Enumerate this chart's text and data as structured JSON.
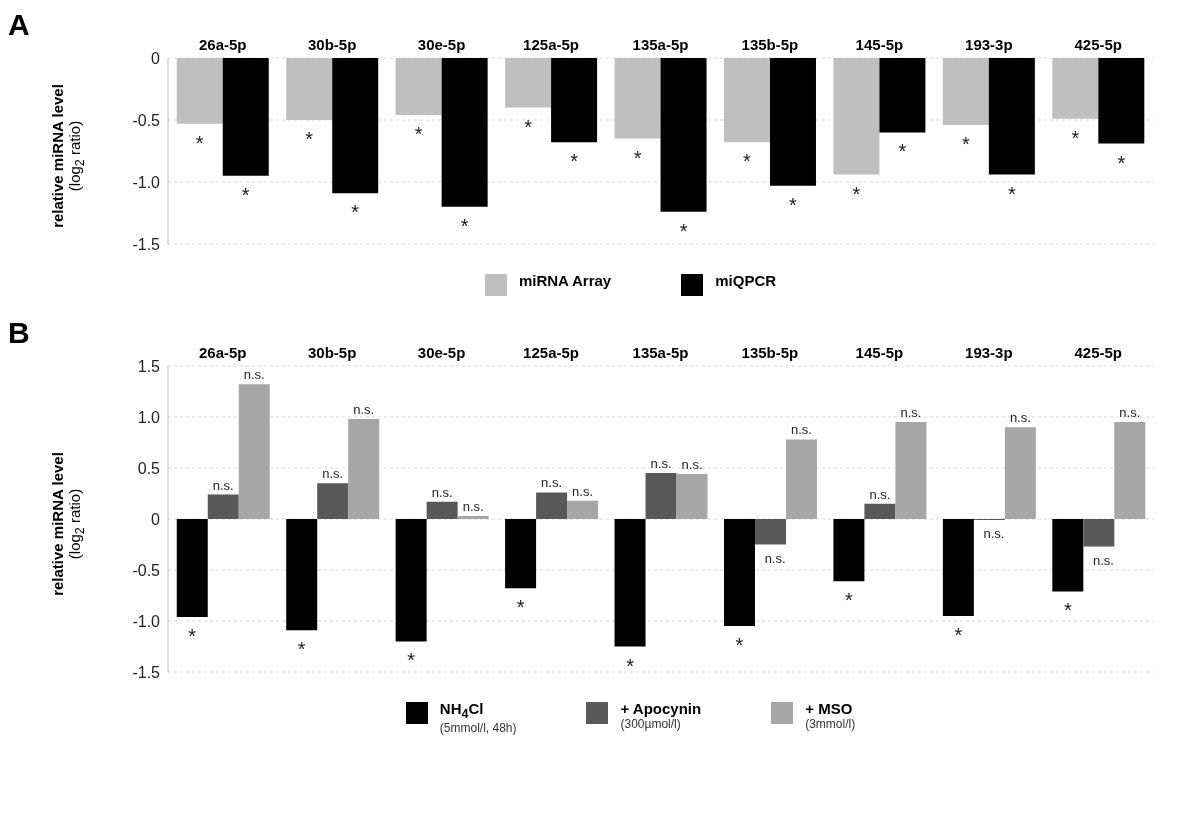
{
  "chart_data": [
    {
      "type": "bar",
      "title": "A",
      "ylabel": "relative miRNA level\n(log$_{2}$ ratio)",
      "categories": [
        "26a-5p",
        "30b-5p",
        "30e-5p",
        "125a-5p",
        "135a-5p",
        "135b-5p",
        "145-5p",
        "193-3p",
        "425-5p"
      ],
      "series": [
        {
          "name": "miRNA Array",
          "color": "#bfbfbf",
          "values": [
            -0.53,
            -0.5,
            -0.46,
            -0.4,
            -0.65,
            -0.68,
            -0.94,
            -0.54,
            -0.49
          ],
          "value_labels": [
            "*",
            "*",
            "*",
            "*",
            "*",
            "*",
            "*",
            "*",
            "*"
          ]
        },
        {
          "name": "miQPCR",
          "color": "#000000",
          "values": [
            -0.95,
            -1.09,
            -1.2,
            -0.68,
            -1.24,
            -1.03,
            -0.6,
            -0.94,
            -0.69
          ],
          "value_labels": [
            "*",
            "*",
            "*",
            "*",
            "*",
            "*",
            "*",
            "*",
            "*"
          ]
        }
      ],
      "ylim": [
        -1.5,
        0
      ],
      "yticks": [
        {
          "value": 0,
          "label": "0"
        },
        {
          "value": -0.5,
          "label": "-0.5"
        },
        {
          "value": -1,
          "label": "-1.0"
        },
        {
          "value": -1.5,
          "label": "-1.5"
        }
      ],
      "grid": "y",
      "legend": "bottom"
    },
    {
      "type": "bar",
      "title": "B",
      "ylabel": "relative miRNA level\n(log$_{2}$ ratio)",
      "categories": [
        "26a-5p",
        "30b-5p",
        "30e-5p",
        "125a-5p",
        "135a-5p",
        "135b-5p",
        "145-5p",
        "193-3p",
        "425-5p"
      ],
      "series": [
        {
          "name": "NH$_{4}$Cl\n(5mmol/l,  48h)",
          "color": "#000000",
          "values": [
            -0.96,
            -1.09,
            -1.2,
            -0.68,
            -1.25,
            -1.05,
            -0.61,
            -0.95,
            -0.71
          ],
          "value_labels": [
            "*",
            "*",
            "*",
            "*",
            "*",
            "*",
            "*",
            "*",
            "*"
          ]
        },
        {
          "name": "+ Apocynin\n(300µmol/l)",
          "color": "#595959",
          "values": [
            0.24,
            0.35,
            0.17,
            0.26,
            0.45,
            -0.25,
            0.15,
            -0.01,
            -0.27
          ],
          "value_labels": [
            "n.s.",
            "n.s.",
            "n.s.",
            "n.s.",
            "n.s.",
            "n.s.",
            "n.s.",
            "n.s.",
            "n.s."
          ]
        },
        {
          "name": "+ MSO\n(3mmol/l)",
          "color": "#a6a6a6",
          "values": [
            1.32,
            0.98,
            0.03,
            0.18,
            0.44,
            0.78,
            0.95,
            0.9,
            0.95
          ],
          "value_labels": [
            "n.s.",
            "n.s.",
            "n.s.",
            "n.s.",
            "n.s.",
            "n.s.",
            "n.s.",
            "n.s.",
            "n.s."
          ]
        }
      ],
      "ylim": [
        -1.5,
        1.5
      ],
      "yticks": [
        {
          "value": 1.5,
          "label": "1.5"
        },
        {
          "value": 1,
          "label": "1.0"
        },
        {
          "value": 0.5,
          "label": "0.5"
        },
        {
          "value": 0,
          "label": "0"
        },
        {
          "value": -0.5,
          "label": "-0.5"
        },
        {
          "value": -1,
          "label": "-1.0"
        },
        {
          "value": -1.5,
          "label": "-1.5"
        }
      ],
      "grid": "y",
      "legend": "bottom"
    }
  ]
}
